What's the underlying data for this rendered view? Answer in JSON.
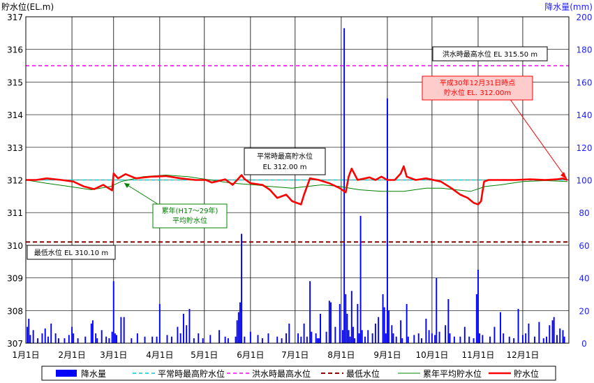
{
  "chart_data": {
    "type": "bar+line",
    "left_axis_label": "貯水位(EL.m)",
    "right_axis_label": "降水量(mm)",
    "left_ylim": [
      307,
      317
    ],
    "left_ticks": [
      "307",
      "308",
      "309",
      "310",
      "311",
      "312",
      "313",
      "314",
      "315",
      "316",
      "317"
    ],
    "right_ylim": [
      0,
      200
    ],
    "right_ticks": [
      "0",
      "20",
      "40",
      "60",
      "80",
      "100",
      "120",
      "140",
      "160",
      "180",
      "200"
    ],
    "x_months": [
      "1月1日",
      "2月1日",
      "3月1日",
      "4月1日",
      "5月1日",
      "6月1日",
      "7月1日",
      "8月1日",
      "9月1日",
      "10月1日",
      "11月1日",
      "12月1日"
    ],
    "grid": true,
    "reference_lines": {
      "normal_max": 312.0,
      "flood_max": 315.5,
      "min_level": 310.1
    },
    "annotations": {
      "flood_label": "洪水時最高水位 EL 315.50 m",
      "normal_label_1": "平常時最高貯水位",
      "normal_label_2": "EL 312.00 m",
      "min_label": "最低水位 EL 310.10 m",
      "avg_label_1": "累年(H17～29年)",
      "avg_label_2": "平均貯水位",
      "current_label_1": "平成30年12月31日時点",
      "current_label_2": "貯水位 EL. 312.00m"
    },
    "legend": [
      "降水量",
      "平常時最高貯水位",
      "洪水時最高水位",
      "最低水位",
      "累年平均貯水位",
      "貯水位"
    ],
    "colors": {
      "rain": "#0000ff",
      "normal": "#00cccc",
      "flood": "#ff00ff",
      "min": "#8b0000",
      "avg": "#008000",
      "level": "#ff0000"
    },
    "water_level": [
      [
        1,
        312.0
      ],
      [
        8,
        312.0
      ],
      [
        15,
        312.05
      ],
      [
        25,
        312.0
      ],
      [
        33,
        311.95
      ],
      [
        40,
        311.8
      ],
      [
        47,
        311.72
      ],
      [
        53,
        311.85
      ],
      [
        59,
        311.68
      ],
      [
        60,
        312.2
      ],
      [
        63,
        312.05
      ],
      [
        68,
        312.18
      ],
      [
        75,
        312.05
      ],
      [
        85,
        312.1
      ],
      [
        95,
        312.12
      ],
      [
        105,
        312.05
      ],
      [
        115,
        312.0
      ],
      [
        122,
        312.0
      ],
      [
        126,
        311.92
      ],
      [
        135,
        312.02
      ],
      [
        140,
        311.85
      ],
      [
        146,
        312.15
      ],
      [
        148,
        312.03
      ],
      [
        152,
        311.9
      ],
      [
        160,
        311.85
      ],
      [
        165,
        311.7
      ],
      [
        170,
        311.45
      ],
      [
        176,
        311.55
      ],
      [
        180,
        311.35
      ],
      [
        186,
        311.25
      ],
      [
        188,
        311.55
      ],
      [
        192,
        312.05
      ],
      [
        198,
        312.0
      ],
      [
        205,
        311.9
      ],
      [
        212,
        311.75
      ],
      [
        216,
        311.62
      ],
      [
        218,
        312.1
      ],
      [
        220,
        312.35
      ],
      [
        224,
        312.0
      ],
      [
        232,
        312.08
      ],
      [
        236,
        312.0
      ],
      [
        240,
        312.1
      ],
      [
        244,
        312.0
      ],
      [
        249,
        312.0
      ],
      [
        253,
        312.2
      ],
      [
        255,
        312.42
      ],
      [
        257,
        312.1
      ],
      [
        263,
        312.0
      ],
      [
        270,
        312.05
      ],
      [
        280,
        311.95
      ],
      [
        287,
        311.75
      ],
      [
        293,
        311.55
      ],
      [
        298,
        311.45
      ],
      [
        302,
        311.3
      ],
      [
        305,
        311.25
      ],
      [
        307,
        311.35
      ],
      [
        309,
        311.95
      ],
      [
        312,
        312.0
      ],
      [
        320,
        312.0
      ],
      [
        330,
        312.0
      ],
      [
        340,
        312.02
      ],
      [
        350,
        312.0
      ],
      [
        358,
        312.02
      ],
      [
        362,
        312.05
      ],
      [
        365,
        312.0
      ]
    ],
    "average_level": [
      [
        1,
        312.0
      ],
      [
        15,
        311.9
      ],
      [
        30,
        311.8
      ],
      [
        45,
        311.7
      ],
      [
        58,
        311.8
      ],
      [
        65,
        311.95
      ],
      [
        80,
        312.1
      ],
      [
        95,
        312.15
      ],
      [
        110,
        312.1
      ],
      [
        125,
        312.0
      ],
      [
        140,
        311.9
      ],
      [
        155,
        311.85
      ],
      [
        165,
        311.8
      ],
      [
        180,
        311.75
      ],
      [
        190,
        311.8
      ],
      [
        200,
        311.85
      ],
      [
        212,
        311.8
      ],
      [
        225,
        311.7
      ],
      [
        240,
        311.65
      ],
      [
        255,
        311.65
      ],
      [
        270,
        311.75
      ],
      [
        280,
        311.75
      ],
      [
        290,
        311.7
      ],
      [
        300,
        311.65
      ],
      [
        310,
        311.8
      ],
      [
        320,
        311.85
      ],
      [
        335,
        311.95
      ],
      [
        350,
        311.98
      ],
      [
        365,
        311.95
      ]
    ],
    "rainfall": [
      [
        2,
        10
      ],
      [
        3,
        15
      ],
      [
        4,
        5
      ],
      [
        6,
        8
      ],
      [
        9,
        3
      ],
      [
        12,
        6
      ],
      [
        14,
        9
      ],
      [
        16,
        4
      ],
      [
        18,
        12
      ],
      [
        21,
        6
      ],
      [
        23,
        3
      ],
      [
        27,
        3
      ],
      [
        30,
        5
      ],
      [
        32,
        10
      ],
      [
        33,
        6
      ],
      [
        36,
        3
      ],
      [
        41,
        4
      ],
      [
        45,
        12
      ],
      [
        46,
        14
      ],
      [
        48,
        6
      ],
      [
        49,
        3
      ],
      [
        52,
        8
      ],
      [
        55,
        4
      ],
      [
        57,
        3
      ],
      [
        59,
        7
      ],
      [
        60,
        38
      ],
      [
        61,
        6
      ],
      [
        62,
        5
      ],
      [
        65,
        16
      ],
      [
        67,
        16
      ],
      [
        72,
        3
      ],
      [
        76,
        6
      ],
      [
        81,
        4
      ],
      [
        86,
        4
      ],
      [
        89,
        4
      ],
      [
        91,
        24
      ],
      [
        96,
        5
      ],
      [
        99,
        4
      ],
      [
        103,
        10
      ],
      [
        105,
        6
      ],
      [
        107,
        18
      ],
      [
        109,
        11
      ],
      [
        111,
        21
      ],
      [
        114,
        3
      ],
      [
        117,
        6
      ],
      [
        120,
        3
      ],
      [
        125,
        5
      ],
      [
        131,
        8
      ],
      [
        135,
        4
      ],
      [
        137,
        3
      ],
      [
        142,
        4
      ],
      [
        143,
        14
      ],
      [
        144,
        19
      ],
      [
        145,
        25
      ],
      [
        146,
        67
      ],
      [
        148,
        4
      ],
      [
        152,
        7
      ],
      [
        157,
        5
      ],
      [
        160,
        3
      ],
      [
        164,
        6
      ],
      [
        170,
        4
      ],
      [
        173,
        3
      ],
      [
        176,
        6
      ],
      [
        178,
        12
      ],
      [
        184,
        6
      ],
      [
        186,
        4
      ],
      [
        188,
        12
      ],
      [
        190,
        4
      ],
      [
        192,
        38
      ],
      [
        193,
        7
      ],
      [
        196,
        6
      ],
      [
        197,
        3
      ],
      [
        198,
        3
      ],
      [
        199,
        18
      ],
      [
        203,
        7
      ],
      [
        205,
        26
      ],
      [
        206,
        25
      ],
      [
        209,
        10
      ],
      [
        212,
        24
      ],
      [
        214,
        8
      ],
      [
        215,
        193
      ],
      [
        216,
        30
      ],
      [
        217,
        18
      ],
      [
        218,
        8
      ],
      [
        219,
        4
      ],
      [
        220,
        32
      ],
      [
        221,
        10
      ],
      [
        222,
        3
      ],
      [
        224,
        24
      ],
      [
        225,
        6
      ],
      [
        226,
        78
      ],
      [
        227,
        8
      ],
      [
        229,
        4
      ],
      [
        231,
        8
      ],
      [
        234,
        6
      ],
      [
        236,
        12
      ],
      [
        238,
        16
      ],
      [
        241,
        30
      ],
      [
        242,
        22
      ],
      [
        243,
        6
      ],
      [
        244,
        150
      ],
      [
        245,
        20
      ],
      [
        247,
        11
      ],
      [
        248,
        6
      ],
      [
        250,
        4
      ],
      [
        253,
        14
      ],
      [
        254,
        3
      ],
      [
        257,
        24
      ],
      [
        258,
        4
      ],
      [
        262,
        5
      ],
      [
        265,
        6
      ],
      [
        267,
        3
      ],
      [
        270,
        15
      ],
      [
        272,
        8
      ],
      [
        274,
        6
      ],
      [
        276,
        5
      ],
      [
        277,
        40
      ],
      [
        279,
        7
      ],
      [
        283,
        11
      ],
      [
        285,
        27
      ],
      [
        286,
        6
      ],
      [
        289,
        4
      ],
      [
        293,
        4
      ],
      [
        296,
        10
      ],
      [
        299,
        4
      ],
      [
        302,
        3
      ],
      [
        304,
        30
      ],
      [
        305,
        45
      ],
      [
        306,
        6
      ],
      [
        308,
        5
      ],
      [
        313,
        4
      ],
      [
        316,
        10
      ],
      [
        320,
        19
      ],
      [
        322,
        6
      ],
      [
        326,
        4
      ],
      [
        329,
        3
      ],
      [
        332,
        21
      ],
      [
        335,
        5
      ],
      [
        337,
        6
      ],
      [
        339,
        12
      ],
      [
        343,
        4
      ],
      [
        346,
        13
      ],
      [
        349,
        3
      ],
      [
        351,
        4
      ],
      [
        353,
        11
      ],
      [
        355,
        14
      ],
      [
        356,
        16
      ],
      [
        358,
        5
      ],
      [
        360,
        9
      ],
      [
        362,
        8
      ],
      [
        363,
        4
      ]
    ]
  }
}
